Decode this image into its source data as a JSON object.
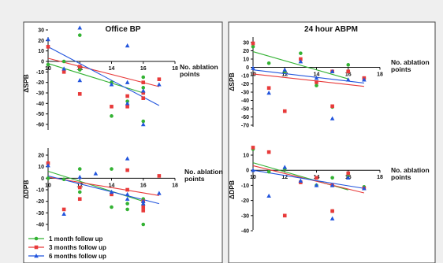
{
  "colors": {
    "s1": "#33b233",
    "s2": "#e83a3a",
    "s3": "#2255dd"
  },
  "legend": [
    {
      "label": "1 month follow up",
      "color": "#33b233",
      "marker": "circle"
    },
    {
      "label": "3 months follow up",
      "color": "#e83a3a",
      "marker": "square"
    },
    {
      "label": "6 months follow up",
      "color": "#2255dd",
      "marker": "triangle"
    }
  ],
  "chart_data": [
    {
      "type": "scatter",
      "title": "Office BP",
      "panel_title": "Office BP",
      "xlabel": "No. ablation points",
      "xlabel_line1": "No. ablation",
      "xlabel_line2": "points",
      "ylabel": "ΔSPB",
      "xlim": [
        10,
        18
      ],
      "ylim": [
        -65,
        35
      ],
      "xticks": [
        10,
        12,
        14,
        16,
        18
      ],
      "yticks": [
        30,
        20,
        10,
        0,
        -10,
        -20,
        -30,
        -40,
        -50,
        -60
      ],
      "xtick_labels": [
        "10",
        "12",
        "14",
        "16",
        "18"
      ],
      "ytick_labels": [
        "30",
        "20",
        "10",
        "0",
        "-10",
        "-20",
        "-30",
        "-40",
        "-50",
        "-60"
      ],
      "series": [
        {
          "name": "1 month follow up",
          "x": [
            10,
            11,
            12,
            12,
            14,
            14,
            15,
            16,
            16,
            16,
            16
          ],
          "y": [
            -3,
            0,
            25,
            -8,
            -52,
            -20,
            -38,
            -15,
            -25,
            -30,
            -57
          ],
          "trend": [
            [
              10,
              -2
            ],
            [
              16,
              -30
            ]
          ]
        },
        {
          "name": "3 months follow up",
          "x": [
            10,
            11,
            12,
            12,
            14,
            15,
            15,
            16,
            16,
            16,
            17
          ],
          "y": [
            14,
            -10,
            -31,
            -5,
            -43,
            -33,
            -43,
            -20,
            -30,
            -35,
            -17
          ],
          "trend": [
            [
              10,
              3
            ],
            [
              17,
              -24
            ]
          ]
        },
        {
          "name": "6 months follow up",
          "x": [
            10,
            11,
            12,
            12,
            14,
            15,
            15,
            15,
            16,
            16,
            17
          ],
          "y": [
            21,
            -7,
            32,
            -18,
            -22,
            15,
            -40,
            -20,
            -28,
            -60,
            -22
          ],
          "trend": [
            [
              10,
              14
            ],
            [
              17,
              -42
            ]
          ]
        }
      ]
    },
    {
      "type": "scatter",
      "title": "24 hour ABPM",
      "panel_title": "24 hour ABPM",
      "xlabel": "No. ablation points",
      "xlabel_line1": "No. ablation",
      "xlabel_line2": "points",
      "ylabel": "ΔSPB",
      "xlim": [
        10,
        18
      ],
      "ylim": [
        -70,
        32
      ],
      "xticks": [
        10,
        12,
        14,
        16,
        18
      ],
      "yticks": [
        30,
        20,
        10,
        0,
        -10,
        -20,
        -30,
        -40,
        -50,
        -60,
        -70
      ],
      "xtick_labels": [
        "10",
        "12",
        "14",
        "16",
        "18"
      ],
      "ytick_labels": [
        "30",
        "20",
        "10",
        "0",
        "-10",
        "-20",
        "-30",
        "-40",
        "-50",
        "-60",
        "-70"
      ],
      "series": [
        {
          "name": "1 month follow up",
          "x": [
            10,
            11,
            12,
            13,
            14,
            15,
            15,
            16,
            17
          ],
          "y": [
            25,
            5,
            -5,
            17,
            -22,
            -48,
            -5,
            3,
            -13
          ],
          "trend": [
            [
              10,
              19
            ],
            [
              16,
              -14
            ]
          ]
        },
        {
          "name": "3 months follow up",
          "x": [
            10,
            11,
            12,
            13,
            14,
            15,
            15,
            16,
            17
          ],
          "y": [
            29,
            -25,
            -53,
            10,
            -18,
            -47,
            -5,
            -5,
            -13
          ],
          "trend": [
            [
              10,
              -8
            ],
            [
              17,
              -23
            ]
          ]
        },
        {
          "name": "6 months follow up",
          "x": [
            10,
            11,
            12,
            13,
            14,
            15,
            15,
            16,
            17
          ],
          "y": [
            -1,
            -31,
            -3,
            7,
            -13,
            -62,
            -5,
            -15,
            -15
          ],
          "trend": [
            [
              10,
              -3
            ],
            [
              17,
              -19
            ]
          ]
        }
      ]
    },
    {
      "type": "scatter",
      "title": "",
      "panel_title": "",
      "xlabel": "No. ablation points",
      "xlabel_line1": "No. ablation",
      "xlabel_line2": "points",
      "ylabel": "ΔDPB",
      "xlim": [
        10,
        18
      ],
      "ylim": [
        -45,
        22
      ],
      "xticks": [
        10,
        12,
        14,
        16,
        18
      ],
      "yticks": [
        20,
        10,
        0,
        -10,
        -20,
        -30,
        -40
      ],
      "xtick_labels": [
        "10",
        "12",
        "14",
        "16",
        "18"
      ],
      "ytick_labels": [
        "20",
        "10",
        "0",
        "-10",
        "-20",
        "-30",
        "-40"
      ],
      "series": [
        {
          "name": "1 month follow up",
          "x": [
            10,
            11,
            12,
            12,
            14,
            14,
            15,
            15,
            16,
            16,
            16
          ],
          "y": [
            0,
            -1,
            8,
            -12,
            -25,
            8,
            -27,
            -22,
            -23,
            -40,
            -18
          ],
          "trend": [
            [
              10,
              6
            ],
            [
              16,
              -20
            ]
          ]
        },
        {
          "name": "3 months follow up",
          "x": [
            10,
            11,
            12,
            12,
            14,
            15,
            15,
            16,
            16,
            16,
            17
          ],
          "y": [
            13,
            -27,
            -8,
            -18,
            -14,
            -10,
            7,
            -20,
            -28,
            -25,
            2
          ],
          "trend": [
            [
              10,
              1
            ],
            [
              17,
              -15
            ]
          ]
        },
        {
          "name": "6 months follow up",
          "x": [
            10,
            11,
            12,
            13,
            14,
            15,
            15,
            15,
            16,
            16,
            17
          ],
          "y": [
            11,
            -31,
            1,
            4,
            -12,
            17,
            -14,
            -18,
            -22,
            -20,
            -13
          ],
          "trend": [
            [
              10,
              2
            ],
            [
              17,
              -22
            ]
          ]
        }
      ]
    },
    {
      "type": "scatter",
      "title": "",
      "panel_title": "",
      "xlabel": "No. ablation points",
      "xlabel_line1": "No. ablation",
      "xlabel_line2": "points",
      "ylabel": "ΔDPB",
      "xlim": [
        10,
        18
      ],
      "ylim": [
        -42,
        18
      ],
      "xticks": [
        10,
        12,
        14,
        16,
        18
      ],
      "yticks": [
        10,
        0,
        -10,
        -20,
        -30,
        -40
      ],
      "xtick_labels": [
        "10",
        "12",
        "14",
        "16",
        "18"
      ],
      "ytick_labels": [
        "10",
        "0",
        "-10",
        "-20",
        "-30",
        "-40"
      ],
      "series": [
        {
          "name": "1 month follow up",
          "x": [
            10,
            11,
            12,
            13,
            14,
            15,
            15,
            16,
            17
          ],
          "y": [
            14,
            -1,
            1,
            -8,
            -10,
            -27,
            -5,
            -3,
            -11
          ],
          "trend": [
            [
              10,
              5
            ],
            [
              16,
              -13
            ]
          ]
        },
        {
          "name": "3 months follow up",
          "x": [
            10,
            11,
            12,
            13,
            14,
            15,
            15,
            16,
            17
          ],
          "y": [
            15,
            12,
            -30,
            -8,
            -5,
            -27,
            -10,
            -2,
            -12
          ],
          "trend": [
            [
              10,
              3
            ],
            [
              17,
              -15
            ]
          ]
        },
        {
          "name": "6 months follow up",
          "x": [
            10,
            11,
            12,
            13,
            14,
            15,
            15,
            16,
            17
          ],
          "y": [
            0,
            -17,
            2,
            -7,
            -10,
            -32,
            -10,
            -5,
            -12
          ],
          "trend": [
            [
              10,
              0
            ],
            [
              17,
              -12
            ]
          ]
        }
      ]
    }
  ]
}
